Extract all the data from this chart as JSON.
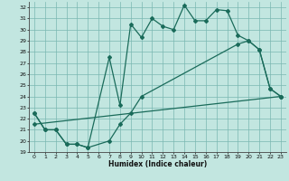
{
  "xlabel": "Humidex (Indice chaleur)",
  "bg_color": "#c2e6e0",
  "grid_color": "#7ab8b2",
  "line_color": "#1a6b5a",
  "ylim": [
    19,
    32.5
  ],
  "xlim": [
    -0.5,
    23.5
  ],
  "yticks": [
    19,
    20,
    21,
    22,
    23,
    24,
    25,
    26,
    27,
    28,
    29,
    30,
    31,
    32
  ],
  "xticks": [
    0,
    1,
    2,
    3,
    4,
    5,
    6,
    7,
    8,
    9,
    10,
    11,
    12,
    13,
    14,
    15,
    16,
    17,
    18,
    19,
    20,
    21,
    22,
    23
  ],
  "curve1_x": [
    0,
    1,
    2,
    3,
    4,
    5,
    7,
    8,
    9,
    10,
    11,
    12,
    13,
    14,
    15,
    16,
    17,
    18,
    19,
    20,
    21,
    22,
    23
  ],
  "curve1_y": [
    22.5,
    21.0,
    21.0,
    19.7,
    19.7,
    19.4,
    27.5,
    23.2,
    30.5,
    29.3,
    31.0,
    30.3,
    30.0,
    32.2,
    30.8,
    30.8,
    31.8,
    31.7,
    29.5,
    29.0,
    28.2,
    24.7,
    24.0
  ],
  "curve2_x": [
    0,
    1,
    2,
    3,
    4,
    5,
    7,
    8,
    9,
    10,
    19,
    20,
    21,
    22,
    23
  ],
  "curve2_y": [
    22.5,
    21.0,
    21.0,
    19.7,
    19.7,
    19.4,
    20.0,
    21.5,
    22.5,
    24.0,
    28.7,
    29.0,
    28.2,
    24.7,
    24.0
  ],
  "curve3_x": [
    0,
    23
  ],
  "curve3_y": [
    21.5,
    24.0
  ]
}
